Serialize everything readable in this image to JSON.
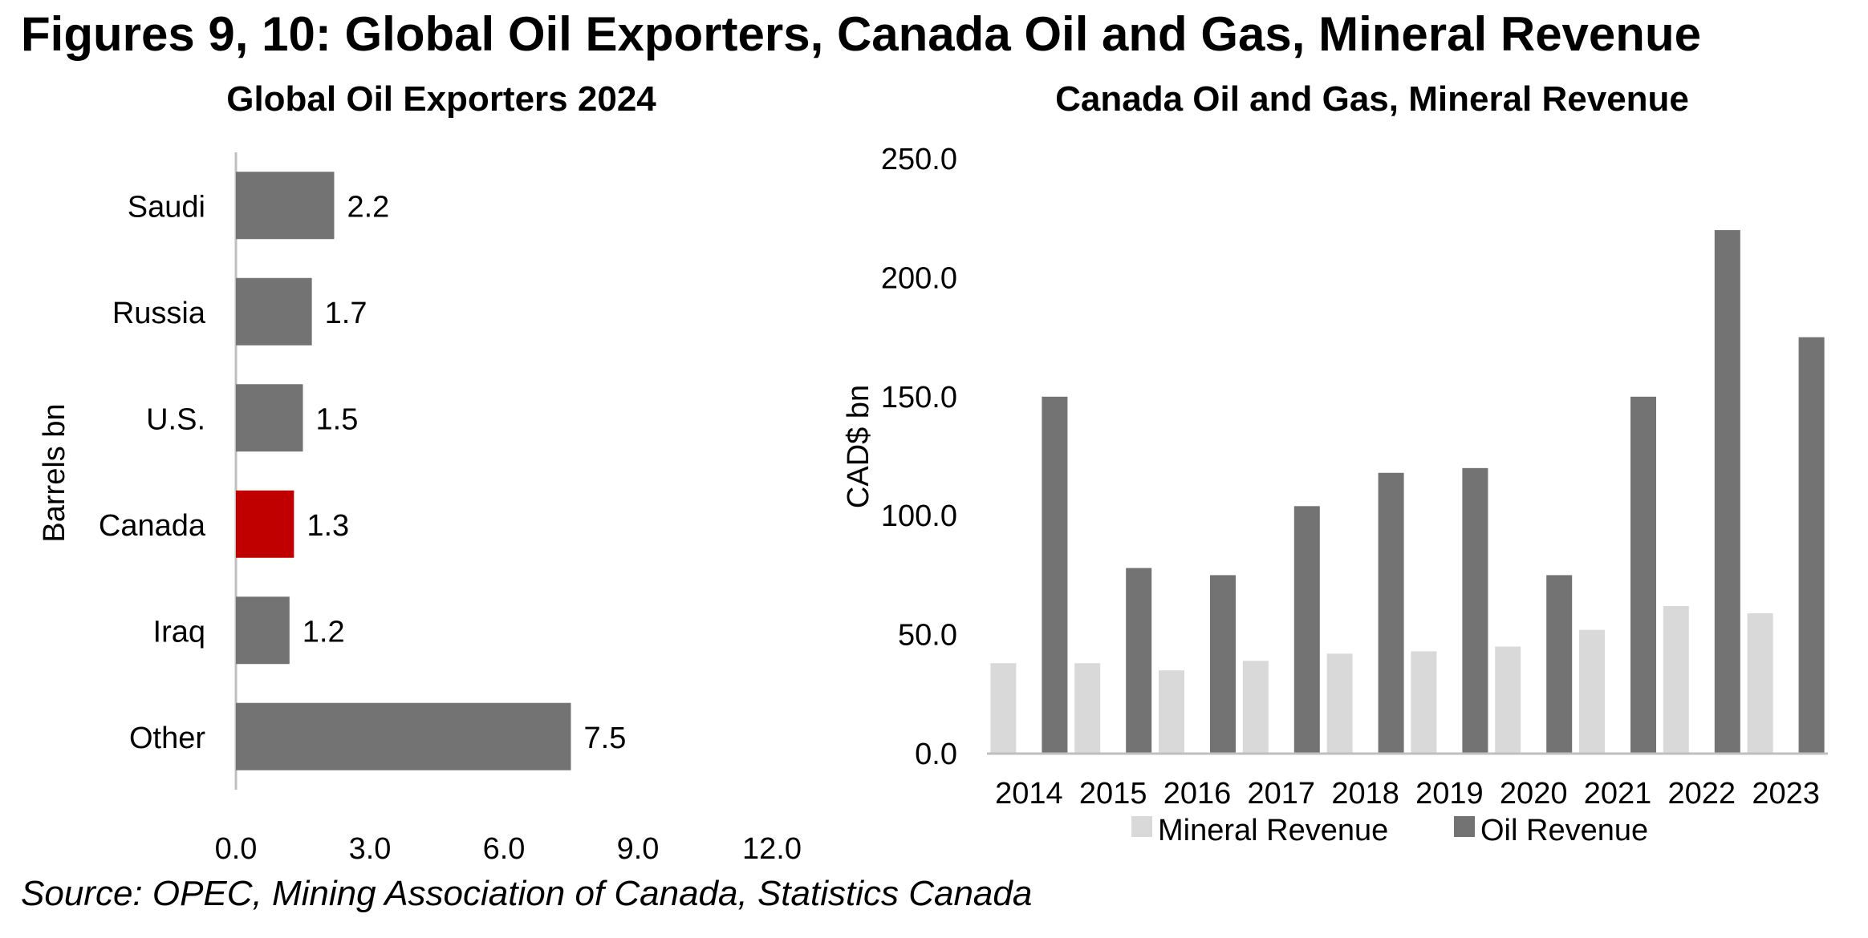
{
  "header": {
    "title": "Figures 9, 10: Global Oil Exporters, Canada Oil and Gas, Mineral Revenue"
  },
  "source": "Source: OPEC, Mining Association of Canada, Statistics Canada",
  "colors": {
    "bar_default": "#737373",
    "bar_highlight": "#C00000",
    "mineral": "#D9D9D9",
    "oil": "#737373",
    "axis": "#BFBFBF"
  },
  "chart_data": [
    {
      "type": "bar",
      "orientation": "horizontal",
      "title": "Global Oil Exporters 2024",
      "ylabel": "Barrels bn",
      "xlabel": "",
      "categories": [
        "Saudi",
        "Russia",
        "U.S.",
        "Canada",
        "Iraq",
        "Other"
      ],
      "values": [
        2.2,
        1.7,
        1.5,
        1.3,
        1.2,
        7.5
      ],
      "value_labels": [
        "2.2",
        "1.7",
        "1.5",
        "1.3",
        "1.2",
        "7.5"
      ],
      "highlight": "Canada",
      "xlim": [
        0,
        12
      ],
      "ticks": [
        0,
        3,
        6,
        9,
        12
      ],
      "tick_labels": [
        "0.0",
        "3.0",
        "6.0",
        "9.0",
        "12.0"
      ],
      "grid": false
    },
    {
      "type": "bar",
      "orientation": "vertical",
      "title": "Canada Oil and Gas, Mineral Revenue",
      "ylabel": "CAD$ bn",
      "xlabel": "",
      "categories": [
        "2014",
        "2015",
        "2016",
        "2017",
        "2018",
        "2019",
        "2020",
        "2021",
        "2022",
        "2023"
      ],
      "series": [
        {
          "name": "Mineral Revenue",
          "values": [
            38,
            38,
            35,
            39,
            42,
            43,
            45,
            52,
            62,
            59
          ]
        },
        {
          "name": "Oil Revenue",
          "values": [
            150,
            78,
            75,
            104,
            118,
            120,
            75,
            150,
            220,
            175
          ]
        }
      ],
      "ylim": [
        0,
        250
      ],
      "ticks": [
        0,
        50,
        100,
        150,
        200,
        250
      ],
      "tick_labels": [
        "0.0",
        "50.0",
        "100.0",
        "150.0",
        "200.0",
        "250.0"
      ],
      "legend": "bottom",
      "grid": false
    }
  ]
}
